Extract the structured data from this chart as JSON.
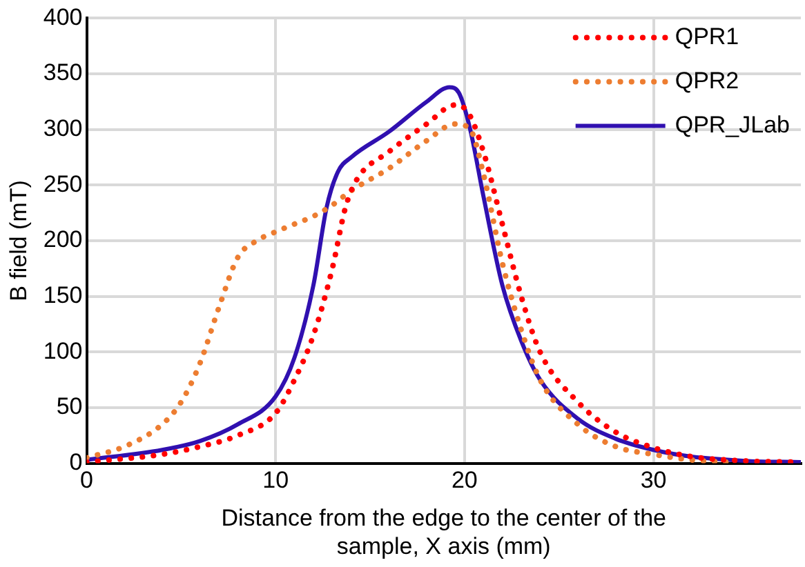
{
  "chart_data": {
    "type": "line",
    "xlabel": "Distance from the edge to the center of the sample, X axis (mm)",
    "ylabel": "B field (mT)",
    "xlim": [
      0,
      37.8
    ],
    "xticks": [
      0,
      10,
      20,
      30
    ],
    "ylim": [
      0,
      400
    ],
    "yticks": [
      0,
      50,
      100,
      150,
      200,
      250,
      300,
      350,
      400
    ],
    "grid": true,
    "legend": "top right",
    "marker": "none",
    "series": [
      {
        "name": "QPR1",
        "color": "#ff0000",
        "line_style": "dotted",
        "x": [
          0,
          4,
          6,
          8,
          10,
          11,
          12,
          13,
          13.7,
          14.3,
          16,
          18,
          19.5,
          20.2,
          21,
          22,
          23,
          24,
          26,
          28,
          30,
          32,
          35,
          37.8
        ],
        "values": [
          1,
          8,
          15,
          25,
          45,
          75,
          115,
          175,
          230,
          255,
          280,
          305,
          322,
          315,
          280,
          215,
          150,
          100,
          55,
          28,
          14,
          6,
          2,
          1
        ]
      },
      {
        "name": "QPR2",
        "color": "#ed7d31",
        "line_style": "dotted",
        "x": [
          0,
          2,
          4,
          5,
          6,
          7,
          8,
          9,
          10,
          11,
          12,
          13,
          14,
          16,
          18,
          19.5,
          20.3,
          21,
          22,
          23,
          24,
          26,
          28,
          30,
          32,
          34
        ],
        "values": [
          5,
          15,
          35,
          55,
          90,
          140,
          185,
          200,
          208,
          215,
          222,
          232,
          245,
          265,
          290,
          305,
          300,
          260,
          180,
          120,
          75,
          35,
          15,
          8,
          3,
          1
        ]
      },
      {
        "name": "QPR_JLab",
        "color": "#3010b0",
        "line_style": "solid",
        "x": [
          0,
          4,
          6,
          8,
          10,
          11,
          12,
          12.7,
          13.3,
          14,
          16,
          18,
          19.2,
          19.7,
          20.3,
          21,
          22,
          23,
          24,
          26,
          28,
          30,
          32,
          35,
          37.8
        ],
        "values": [
          3,
          12,
          20,
          35,
          60,
          95,
          160,
          230,
          262,
          275,
          298,
          325,
          338,
          333,
          300,
          240,
          160,
          110,
          75,
          40,
          22,
          12,
          6,
          2,
          1
        ]
      }
    ]
  }
}
